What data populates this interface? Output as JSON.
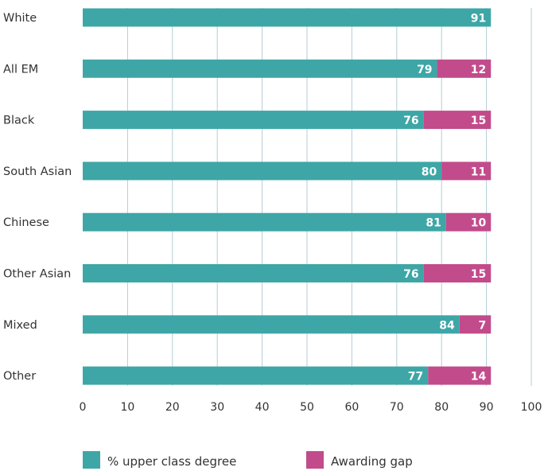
{
  "chart_data": {
    "type": "bar",
    "stacked": true,
    "orientation": "horizontal",
    "categories": [
      "White",
      "All EM",
      "Black",
      "South Asian",
      "Chinese",
      "Other Asian",
      "Mixed",
      "Other"
    ],
    "series": [
      {
        "name": "% upper class degree",
        "color": "#3ea6a7",
        "values": [
          91,
          79,
          76,
          80,
          81,
          76,
          84,
          77
        ]
      },
      {
        "name": "Awarding gap",
        "color": "#c24b8b",
        "values": [
          null,
          12,
          15,
          11,
          10,
          15,
          7,
          14
        ]
      }
    ],
    "xlim": [
      0,
      100
    ],
    "xticks": [
      "0",
      "10",
      "20",
      "30",
      "40",
      "50",
      "60",
      "70",
      "80",
      "90",
      "100"
    ],
    "grid": true,
    "legend": "bottom",
    "xlabel": "",
    "ylabel": ""
  }
}
